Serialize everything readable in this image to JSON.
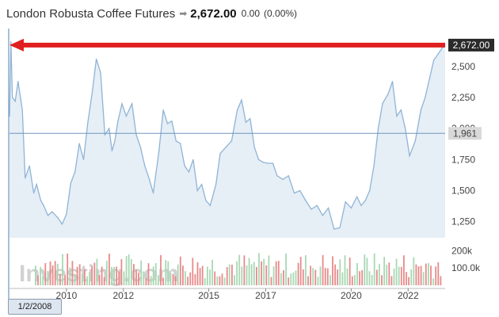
{
  "header": {
    "title": "London Robusta Coffee Futures",
    "arrow_icon": "right-arrow-icon",
    "price": "2,672.00",
    "change": "0.00",
    "change_pct": "(0.00%)"
  },
  "watermark": "Investing.com",
  "start_date_tag": "1/2/2008",
  "colors": {
    "line": "#8fb4d6",
    "area": "#e6eef6",
    "crosshair": "#6f97bd",
    "red_arrow": "#e02020",
    "price_tag_bg": "#2b2b2b",
    "marker_tag_bg": "#d9d9d9",
    "volume_up": "#a8d8b4",
    "volume_down": "#e88a8a"
  },
  "chart_data": {
    "type": "area",
    "title": "London Robusta Coffee Futures",
    "xlabel": "",
    "ylabel": "",
    "x_ticks": [
      "2010",
      "2012",
      "2015",
      "2017",
      "2020",
      "2022"
    ],
    "y_ticks": [
      "1,250",
      "1,500",
      "1,750",
      "2,000",
      "2,250",
      "2,500"
    ],
    "ylim": [
      1120,
      2780
    ],
    "xlim": [
      2008.0,
      2023.3
    ],
    "grid": false,
    "last_price_label": "2,672.00",
    "crosshair_label": "1,961",
    "crosshair_value": 1961,
    "series": [
      {
        "x": [
          2008.0,
          2008.05,
          2008.1,
          2008.2,
          2008.3,
          2008.45,
          2008.55,
          2008.7,
          2008.85,
          2008.95,
          2009.1,
          2009.2,
          2009.35,
          2009.5,
          2009.7,
          2009.85,
          2010.0,
          2010.15,
          2010.3,
          2010.45,
          2010.6,
          2010.75,
          2010.9,
          2011.05,
          2011.2,
          2011.35,
          2011.5,
          2011.6,
          2011.7,
          2011.8,
          2011.95,
          2012.1,
          2012.3,
          2012.45,
          2012.6,
          2012.75,
          2012.9,
          2013.05,
          2013.25,
          2013.4,
          2013.55,
          2013.7,
          2013.85,
          2014.0,
          2014.15,
          2014.3,
          2014.45,
          2014.6,
          2014.75,
          2014.9,
          2015.05,
          2015.25,
          2015.4,
          2015.6,
          2015.8,
          2016.0,
          2016.15,
          2016.3,
          2016.45,
          2016.6,
          2016.75,
          2016.9,
          2017.05,
          2017.25,
          2017.4,
          2017.6,
          2017.8,
          2018.0,
          2018.2,
          2018.4,
          2018.6,
          2018.8,
          2019.0,
          2019.2,
          2019.4,
          2019.6,
          2019.8,
          2020.0,
          2020.2,
          2020.35,
          2020.5,
          2020.65,
          2020.8,
          2020.95,
          2021.1,
          2021.3,
          2021.45,
          2021.6,
          2021.75,
          2021.9,
          2022.05,
          2022.25,
          2022.45,
          2022.6,
          2022.75,
          2022.9,
          2023.05,
          2023.2,
          2023.3
        ],
        "y": [
          2100,
          2700,
          2250,
          2220,
          2380,
          2150,
          1600,
          1700,
          1480,
          1550,
          1420,
          1380,
          1300,
          1330,
          1280,
          1230,
          1310,
          1560,
          1650,
          1880,
          1750,
          2050,
          2280,
          2560,
          2450,
          1950,
          2000,
          1820,
          1900,
          2050,
          2200,
          2100,
          2200,
          1950,
          1850,
          1700,
          1600,
          1480,
          1820,
          2150,
          2040,
          2060,
          1900,
          1880,
          1700,
          1650,
          1750,
          1500,
          1550,
          1420,
          1380,
          1550,
          1800,
          1850,
          1900,
          2150,
          2230,
          2050,
          2080,
          1850,
          1750,
          1730,
          1720,
          1720,
          1620,
          1590,
          1620,
          1480,
          1500,
          1420,
          1350,
          1380,
          1300,
          1360,
          1190,
          1200,
          1410,
          1360,
          1450,
          1380,
          1420,
          1500,
          1700,
          2000,
          2200,
          2280,
          2380,
          2100,
          2150,
          2000,
          1780,
          1900,
          2150,
          2250,
          2400,
          2550,
          2600,
          2650,
          2672
        ]
      }
    ],
    "volume": {
      "y_ticks": [
        "100.0k",
        "200k"
      ],
      "ylim": [
        0,
        220000
      ]
    }
  }
}
